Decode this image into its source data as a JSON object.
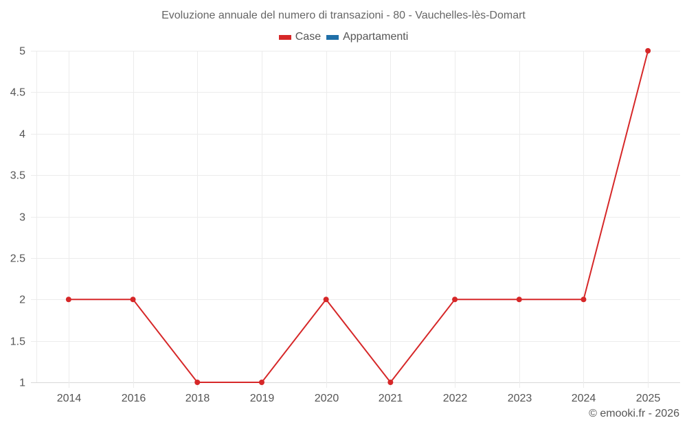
{
  "chart_data": {
    "type": "line",
    "title": "Evoluzione annuale del numero di transazioni - 80 - Vauchelles-lès-Domart",
    "categories": [
      "2014",
      "2016",
      "2018",
      "2019",
      "2020",
      "2021",
      "2022",
      "2023",
      "2024",
      "2025"
    ],
    "series": [
      {
        "name": "Case",
        "color": "#d62728",
        "values": [
          2,
          2,
          1,
          1,
          2,
          1,
          2,
          2,
          2,
          5
        ]
      },
      {
        "name": "Appartamenti",
        "color": "#1f6fa8",
        "values": []
      }
    ],
    "xlabel": "",
    "ylabel": "",
    "ylim": [
      1,
      5
    ],
    "yticks": [
      1,
      1.5,
      2,
      2.5,
      3,
      3.5,
      4,
      4.5,
      5
    ],
    "grid": true,
    "legend_position": "top-center"
  },
  "legend": [
    {
      "label": "Case",
      "color": "#d62728"
    },
    {
      "label": "Appartamenti",
      "color": "#1f6fa8"
    }
  ],
  "credit": "© emooki.fr - 2026"
}
